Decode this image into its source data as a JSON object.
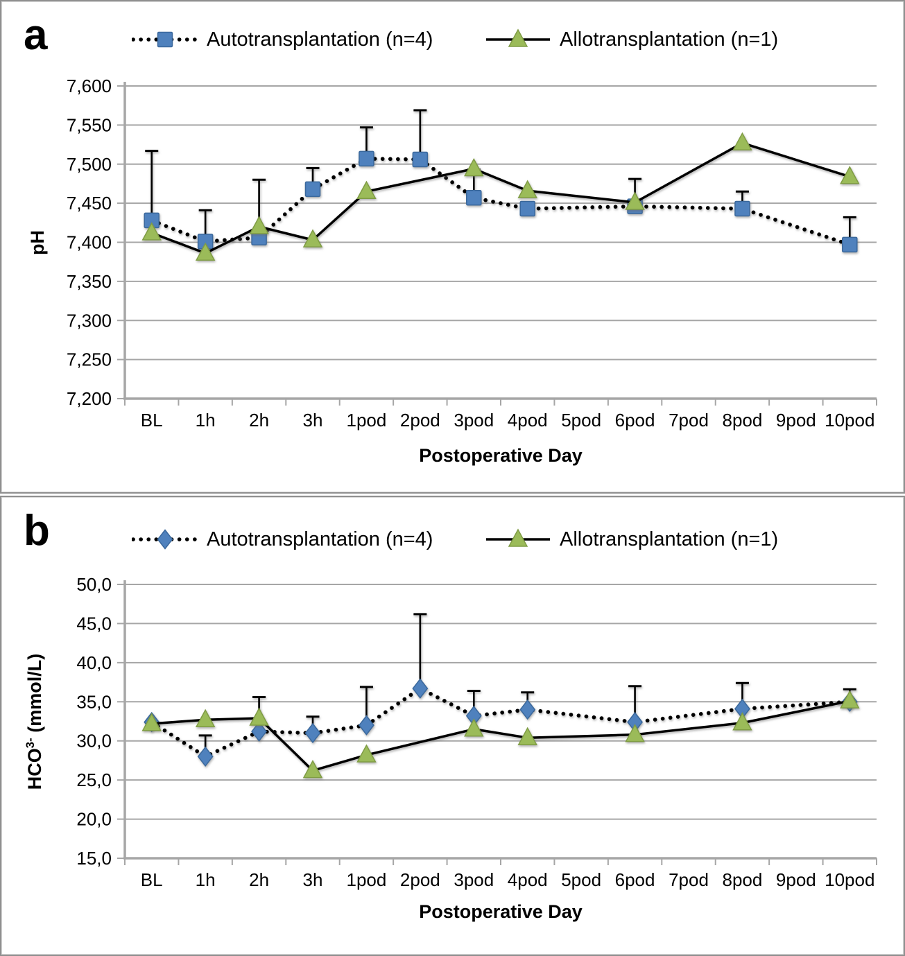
{
  "style": {
    "grid_color": "#a6a6a6",
    "axis_color": "#a6a6a6",
    "error_bar_color": "#000000",
    "auto_color": "#4f81bd",
    "auto_edge_color": "#3a689c",
    "allo_color": "#9bbb59",
    "allo_edge_color": "#7f9c44"
  },
  "chart_data": {
    "type": "line",
    "panels": [
      {
        "letter": "a",
        "x_axis": {
          "label": "Postoperative Day",
          "categories": [
            "BL",
            "1h",
            "2h",
            "3h",
            "1pod",
            "2pod",
            "3pod",
            "4pod",
            "5pod",
            "6pod",
            "7pod",
            "8pod",
            "9pod",
            "10pod"
          ]
        },
        "y_axis": {
          "label_main": "pH",
          "label_sup": "",
          "label_rest": "",
          "min": 7.2,
          "max": 7.6,
          "step": 0.05,
          "tick_labels": [
            "7,200",
            "7,250",
            "7,300",
            "7,350",
            "7,400",
            "7,450",
            "7,500",
            "7,550",
            "7,600"
          ]
        },
        "series": [
          {
            "name": "Autotransplantation (n=4)",
            "marker": "square",
            "color": "#4f81bd",
            "edge": "#3a689c",
            "line": "dotted",
            "values": [
              7.428,
              7.401,
              7.406,
              7.468,
              7.507,
              7.506,
              7.457,
              7.443,
              null,
              7.446,
              null,
              7.443,
              null,
              7.397
            ],
            "err_up": [
              0.089,
              0.04,
              0.074,
              0.027,
              0.04,
              0.063,
              0.036,
              null,
              null,
              0.035,
              null,
              0.022,
              null,
              0.035
            ]
          },
          {
            "name": "Allotransplantation (n=1)",
            "marker": "triangle",
            "color": "#9bbb59",
            "edge": "#7f9c44",
            "line": "solid",
            "values": [
              7.412,
              7.386,
              7.42,
              7.403,
              7.465,
              null,
              7.494,
              7.466,
              null,
              7.451,
              null,
              7.527,
              null,
              7.484
            ],
            "err_up": [
              null,
              null,
              null,
              null,
              null,
              null,
              null,
              null,
              null,
              null,
              null,
              null,
              null,
              null
            ]
          }
        ]
      },
      {
        "letter": "b",
        "x_axis": {
          "label": "Postoperative Day",
          "categories": [
            "BL",
            "1h",
            "2h",
            "3h",
            "1pod",
            "2pod",
            "3pod",
            "4pod",
            "5pod",
            "6pod",
            "7pod",
            "8pod",
            "9pod",
            "10pod"
          ]
        },
        "y_axis": {
          "label_main": "HCO",
          "label_sup": "3-",
          "label_rest": " (mmol/L)",
          "min": 15,
          "max": 50,
          "step": 5,
          "tick_labels": [
            "15,0",
            "20,0",
            "25,0",
            "30,0",
            "35,0",
            "40,0",
            "45,0",
            "50,0"
          ]
        },
        "series": [
          {
            "name": "Autotransplantation (n=4)",
            "marker": "diamond",
            "color": "#4f81bd",
            "edge": "#3a689c",
            "line": "dotted",
            "values": [
              32.4,
              28.0,
              31.2,
              31.0,
              32.0,
              36.7,
              33.2,
              34.0,
              null,
              32.4,
              null,
              34.1,
              null,
              35.0
            ],
            "err_up": [
              null,
              2.7,
              4.4,
              2.1,
              4.9,
              9.5,
              3.2,
              2.2,
              null,
              4.6,
              null,
              3.3,
              null,
              1.6
            ]
          },
          {
            "name": "Allotransplantation (n=1)",
            "marker": "triangle",
            "color": "#9bbb59",
            "edge": "#7f9c44",
            "line": "solid",
            "values": [
              32.2,
              32.7,
              32.9,
              26.2,
              28.2,
              null,
              31.5,
              30.4,
              null,
              30.8,
              null,
              32.3,
              null,
              35.1
            ],
            "err_up": [
              null,
              null,
              null,
              null,
              null,
              null,
              null,
              null,
              null,
              null,
              null,
              null,
              null,
              null
            ]
          }
        ]
      }
    ]
  }
}
